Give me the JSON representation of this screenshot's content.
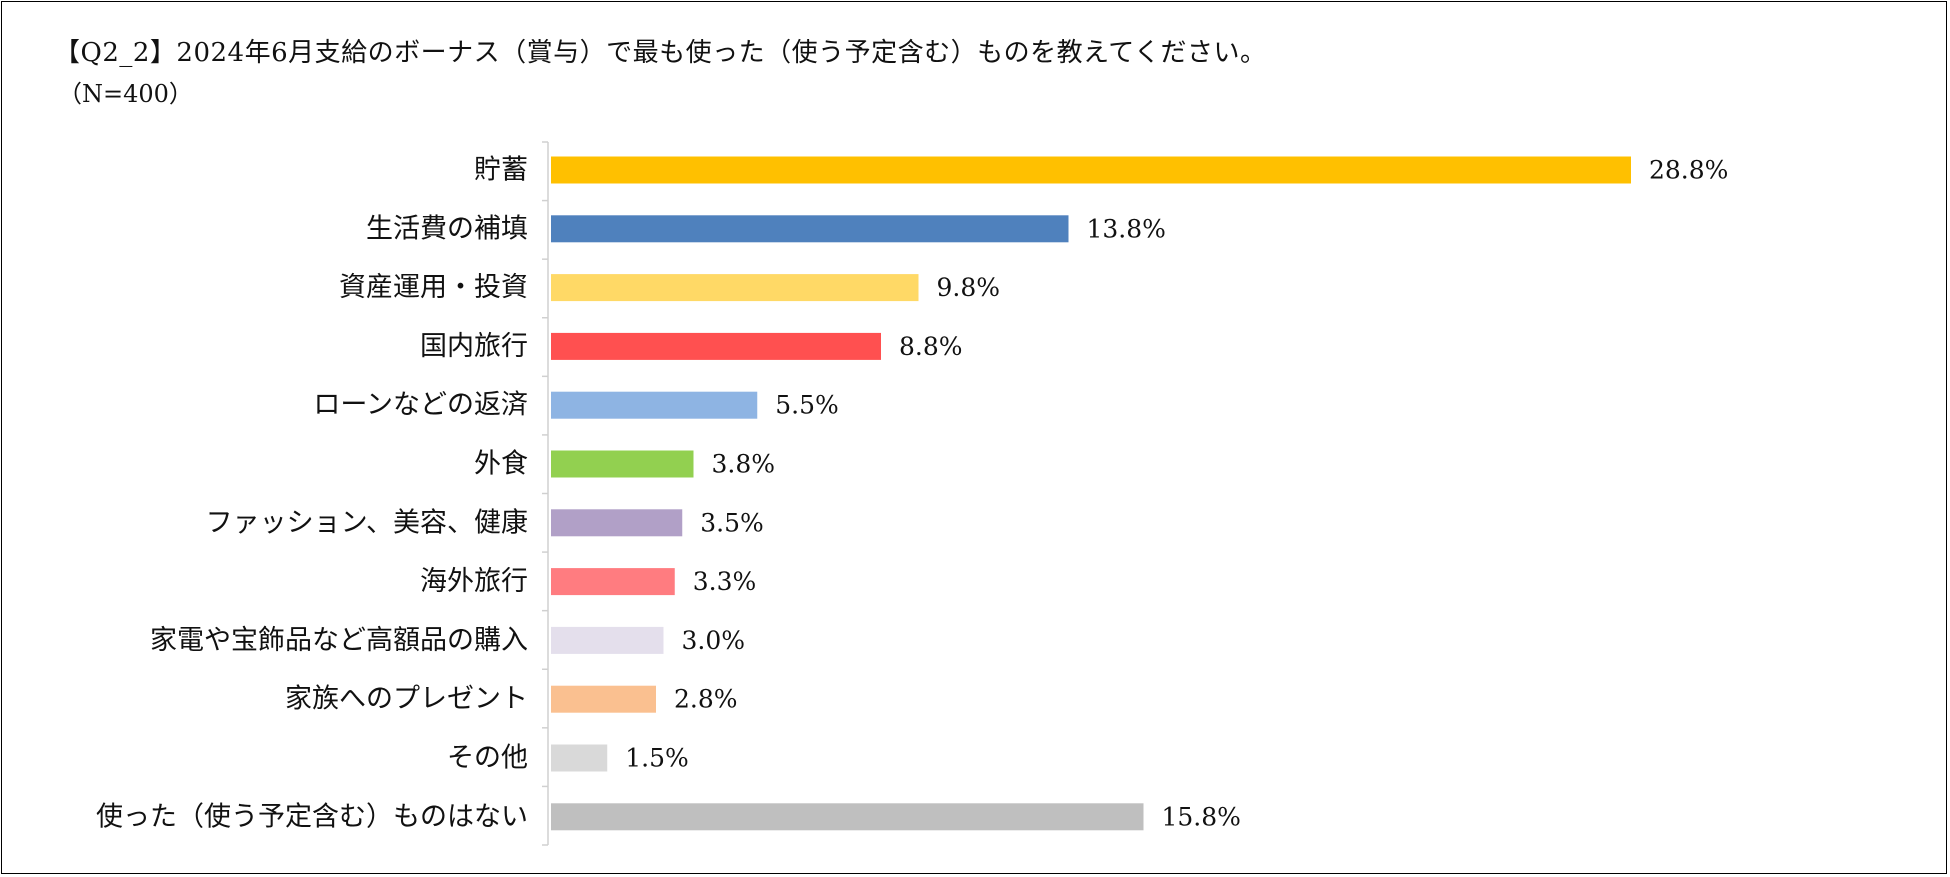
{
  "title": "【Q2_2】2024年6月支給のボーナス（賞与）で最も使った（使う予定含む）ものを教えてください。",
  "subtitle": "（N=400）",
  "chart_data": {
    "type": "bar",
    "orientation": "horizontal",
    "categories": [
      "貯蓄",
      "生活費の補填",
      "資産運用・投資",
      "国内旅行",
      "ローンなどの返済",
      "外食",
      "ファッション、美容、健康",
      "海外旅行",
      "家電や宝飾品など高額品の購入",
      "家族へのプレゼント",
      "その他",
      "使った（使う予定含む）ものはない"
    ],
    "values": [
      28.8,
      13.8,
      9.8,
      8.8,
      5.5,
      3.8,
      3.5,
      3.3,
      3.0,
      2.8,
      1.5,
      15.8
    ],
    "value_labels": [
      "28.8%",
      "13.8%",
      "9.8%",
      "8.8%",
      "5.5%",
      "3.8%",
      "3.5%",
      "3.3%",
      "3.0%",
      "2.8%",
      "1.5%",
      "15.8%"
    ],
    "colors": [
      "#FFC000",
      "#4F81BD",
      "#FFD966",
      "#FF5050",
      "#8EB4E3",
      "#92D050",
      "#B1A0C7",
      "#FF7C80",
      "#E4DFEC",
      "#FAC090",
      "#D9D9D9",
      "#BFBFBF"
    ],
    "xlim": [
      0,
      30
    ],
    "grid": false,
    "legend": "none"
  }
}
